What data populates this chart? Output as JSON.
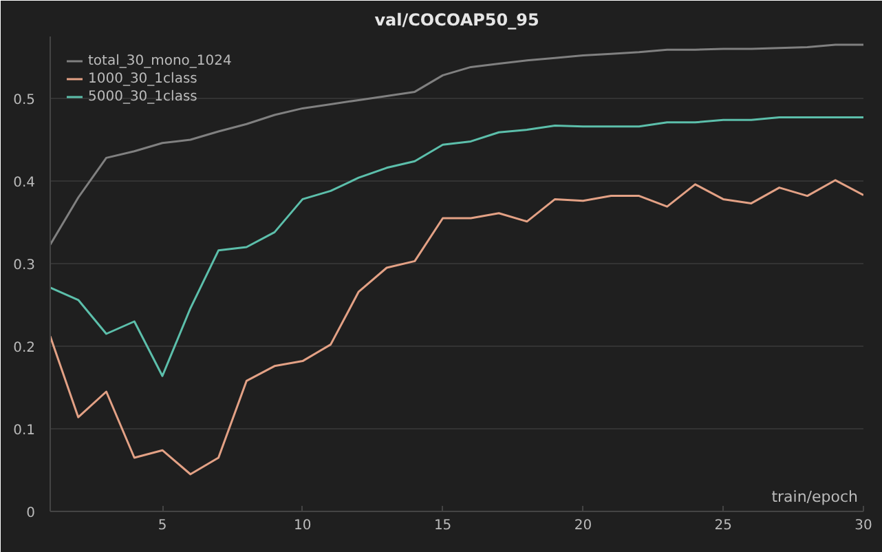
{
  "chart_data": {
    "type": "line",
    "title": "val/COCOAP50_95",
    "xlabel": "train/epoch",
    "x": [
      1,
      2,
      3,
      4,
      5,
      6,
      7,
      8,
      9,
      10,
      11,
      12,
      13,
      14,
      15,
      16,
      17,
      18,
      19,
      20,
      21,
      22,
      23,
      24,
      25,
      26,
      27,
      28,
      29,
      30
    ],
    "series": [
      {
        "name": "total_30_mono_1024",
        "color": "#808080",
        "values": [
          0.323,
          0.38,
          0.428,
          0.436,
          0.446,
          0.45,
          0.46,
          0.469,
          0.48,
          0.488,
          0.493,
          0.498,
          0.503,
          0.508,
          0.528,
          0.538,
          0.542,
          0.546,
          0.549,
          0.552,
          0.554,
          0.556,
          0.559,
          0.559,
          0.56,
          0.56,
          0.561,
          0.562,
          0.565,
          0.565
        ]
      },
      {
        "name": "1000_30_1class",
        "color": "#e3a185",
        "values": [
          0.212,
          0.114,
          0.145,
          0.065,
          0.074,
          0.045,
          0.065,
          0.158,
          0.176,
          0.182,
          0.202,
          0.266,
          0.295,
          0.303,
          0.355,
          0.355,
          0.361,
          0.351,
          0.378,
          0.376,
          0.382,
          0.382,
          0.369,
          0.396,
          0.378,
          0.373,
          0.392,
          0.382,
          0.401,
          0.383
        ]
      },
      {
        "name": "5000_30_1class",
        "color": "#5cbfab",
        "values": [
          0.271,
          0.256,
          0.215,
          0.23,
          0.164,
          0.246,
          0.316,
          0.32,
          0.338,
          0.378,
          0.388,
          0.404,
          0.416,
          0.424,
          0.444,
          0.448,
          0.459,
          0.462,
          0.467,
          0.466,
          0.466,
          0.466,
          0.471,
          0.471,
          0.474,
          0.474,
          0.477,
          0.477,
          0.477,
          0.477
        ]
      }
    ],
    "xlim": [
      1,
      30
    ],
    "ylim": [
      0,
      0.575
    ],
    "xticks": [
      5,
      10,
      15,
      20,
      25,
      30
    ],
    "yticks": [
      0,
      0.1,
      0.2,
      0.3,
      0.4,
      0.5
    ],
    "grid": "y",
    "legend": "top left"
  }
}
